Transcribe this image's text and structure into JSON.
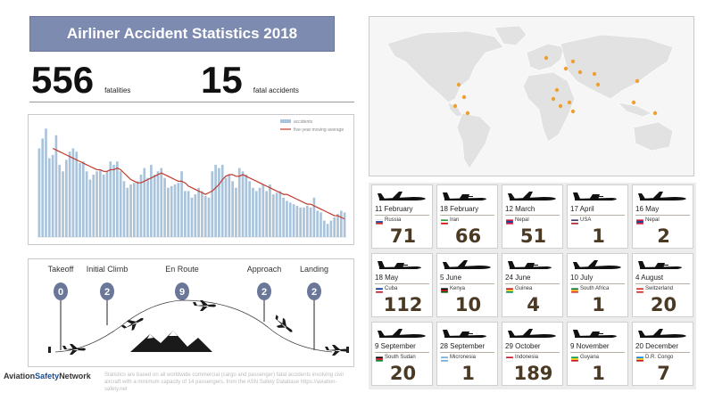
{
  "header": {
    "title": "Airliner Accident Statistics 2018"
  },
  "stats": [
    {
      "value": "556",
      "label": "fatalities"
    },
    {
      "value": "15",
      "label": "fatal accidents"
    }
  ],
  "chart_data": [
    {
      "type": "bar",
      "title": "",
      "xlabel": "",
      "ylabel": "",
      "legend_position": "top-right",
      "series": [
        {
          "name": "accidents",
          "type": "bar",
          "color": "#a9c3db",
          "values": [
            54,
            60,
            66,
            48,
            50,
            62,
            44,
            40,
            47,
            52,
            54,
            52,
            45,
            46,
            40,
            35,
            38,
            40,
            41,
            38,
            40,
            46,
            44,
            46,
            40,
            34,
            30,
            32,
            33,
            34,
            38,
            42,
            36,
            44,
            38,
            40,
            42,
            36,
            30,
            31,
            32,
            33,
            40,
            28,
            28,
            24,
            26,
            30,
            28,
            25,
            24,
            40,
            44,
            42,
            44,
            36,
            38,
            34,
            30,
            42,
            40,
            38,
            34,
            30,
            28,
            30,
            32,
            28,
            32,
            26,
            27,
            28,
            24,
            22,
            21,
            20,
            19,
            18,
            18,
            19,
            18,
            24,
            16,
            15,
            10,
            8,
            10,
            12,
            14,
            16,
            15
          ]
        },
        {
          "name": "five-year moving average",
          "type": "line",
          "color": "#c0392b",
          "values": [
            null,
            null,
            null,
            null,
            54,
            53,
            52,
            51,
            50,
            49,
            48,
            47,
            46,
            45,
            44,
            43,
            42,
            41,
            41,
            40,
            40,
            41,
            41,
            42,
            41,
            39,
            37,
            35,
            34,
            33,
            33,
            34,
            35,
            36,
            37,
            38,
            39,
            38,
            37,
            36,
            35,
            34,
            34,
            33,
            31,
            30,
            29,
            28,
            27,
            26,
            27,
            28,
            30,
            32,
            35,
            37,
            38,
            38,
            37,
            37,
            38,
            37,
            36,
            35,
            34,
            33,
            32,
            31,
            30,
            29,
            28,
            27,
            26,
            26,
            25,
            24,
            23,
            22,
            21,
            20,
            20,
            19,
            18,
            17,
            16,
            15,
            14,
            13,
            13,
            12,
            11
          ]
        }
      ],
      "ylim": [
        0,
        70
      ]
    },
    {
      "type": "bar",
      "title": "",
      "categories": [
        "Takeoff",
        "Initial Climb",
        "En Route",
        "Approach",
        "Landing"
      ],
      "values": [
        0,
        2,
        9,
        2,
        2
      ]
    }
  ],
  "phases": [
    {
      "label": "Takeoff",
      "count": "0"
    },
    {
      "label": "Initial Climb",
      "count": "2"
    },
    {
      "label": "En Route",
      "count": "9"
    },
    {
      "label": "Approach",
      "count": "2"
    },
    {
      "label": "Landing",
      "count": "2"
    }
  ],
  "accidents": [
    {
      "date": "11 February",
      "country": "Russia",
      "fatalities": "71",
      "flag": [
        "#ffffff",
        "#1c3f9e",
        "#d52b1e"
      ]
    },
    {
      "date": "18 February",
      "country": "Iran",
      "fatalities": "66",
      "flag": [
        "#239f40",
        "#ffffff",
        "#da0000"
      ]
    },
    {
      "date": "12 March",
      "country": "Nepal",
      "fatalities": "51",
      "flag": [
        "#dc143c",
        "#003893",
        "#dc143c"
      ]
    },
    {
      "date": "17 April",
      "country": "USA",
      "fatalities": "1",
      "flag": [
        "#3c3b6e",
        "#ffffff",
        "#b22234"
      ]
    },
    {
      "date": "16 May",
      "country": "Nepal",
      "fatalities": "2",
      "flag": [
        "#dc143c",
        "#003893",
        "#dc143c"
      ]
    },
    {
      "date": "18 May",
      "country": "Cuba",
      "fatalities": "112",
      "flag": [
        "#002a8f",
        "#ffffff",
        "#cf142b"
      ]
    },
    {
      "date": "5 June",
      "country": "Kenya",
      "fatalities": "10",
      "flag": [
        "#000000",
        "#bb0000",
        "#006600"
      ]
    },
    {
      "date": "24 June",
      "country": "Guinea",
      "fatalities": "4",
      "flag": [
        "#ce1126",
        "#fcd116",
        "#009460"
      ]
    },
    {
      "date": "10 July",
      "country": "South Africa",
      "fatalities": "1",
      "flag": [
        "#007a4d",
        "#ffb612",
        "#de3831"
      ]
    },
    {
      "date": "4 August",
      "country": "Switzerland",
      "fatalities": "20",
      "flag": [
        "#d52b1e",
        "#ffffff",
        "#d52b1e"
      ]
    },
    {
      "date": "9 September",
      "country": "South Sudan",
      "fatalities": "20",
      "flag": [
        "#000000",
        "#da121a",
        "#078930"
      ]
    },
    {
      "date": "28 September",
      "country": "Micronesia",
      "fatalities": "1",
      "flag": [
        "#75b2dd",
        "#ffffff",
        "#75b2dd"
      ]
    },
    {
      "date": "29 October",
      "country": "Indonesia",
      "fatalities": "189",
      "flag": [
        "#ce1126",
        "#ffffff",
        "#ffffff"
      ]
    },
    {
      "date": "9 November",
      "country": "Guyana",
      "fatalities": "1",
      "flag": [
        "#009e49",
        "#fcd116",
        "#ce1126"
      ]
    },
    {
      "date": "20 December",
      "country": "D.R. Congo",
      "fatalities": "7",
      "flag": [
        "#007fff",
        "#f7d618",
        "#ce1021"
      ]
    }
  ],
  "footer": {
    "logo_a": "Aviation",
    "logo_b": "Safety",
    "logo_c": "Network",
    "note": "Statistics are based on all worldwide commercial (cargo and passenger) fatal accidents involving civil aircraft with a minimum capacity of 14 passengers, from the ASN Safety Database https://aviation-safety.net"
  },
  "colors": {
    "title_bg": "#7d8bb0",
    "bar": "#a9c3db",
    "line": "#c0392b",
    "badge": "#6a7798",
    "map_dot": "#f0a030",
    "number": "#4a3a24"
  }
}
